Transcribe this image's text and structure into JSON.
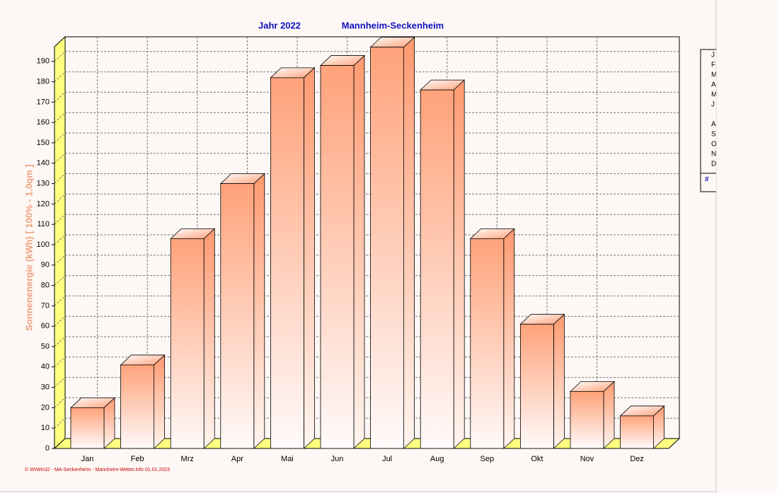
{
  "chart_data": {
    "type": "bar3d",
    "title": "Jahr  2022",
    "subtitle": "Mannheim-Seckenheim",
    "y_label": "Sonnenenergie  (kWh)   [ 100% - 1.0qm ]",
    "footer": "© WrWin32 - MA-Seckenheim - Mannheim-Wetter.info  01.01.2023",
    "categories": [
      "Jan",
      "Feb",
      "Mrz",
      "Apr",
      "Mai",
      "Jun",
      "Jul",
      "Aug",
      "Sep",
      "Okt",
      "Nov",
      "Dez"
    ],
    "values": [
      20,
      41,
      103,
      130,
      182,
      188,
      197,
      176,
      103,
      61,
      28,
      16
    ],
    "color": "#ffa27a",
    "ylim": [
      0,
      200
    ],
    "yticks": [
      0,
      10,
      20,
      30,
      40,
      50,
      60,
      70,
      80,
      90,
      100,
      110,
      120,
      130,
      140,
      150,
      160,
      170,
      180,
      190
    ],
    "grid": true,
    "legend_items": [
      "J",
      "F",
      "M",
      "A",
      "M",
      "J",
      null,
      "A",
      "S",
      "O",
      "N",
      "D"
    ],
    "legend_footer": "#"
  }
}
